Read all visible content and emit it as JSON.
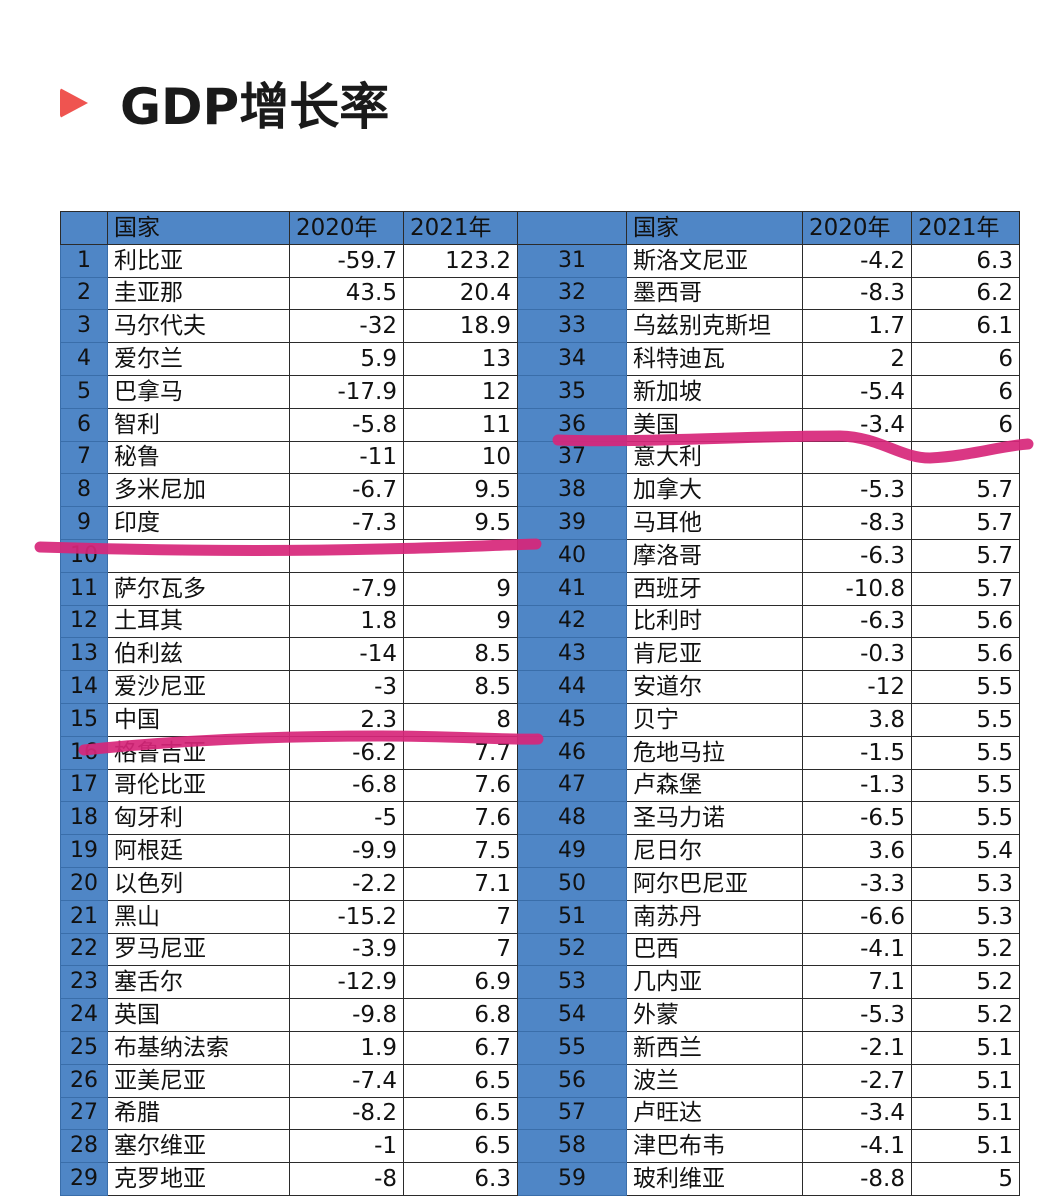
{
  "heading": {
    "title": "GDP增长率",
    "icon": "play-triangle-icon",
    "accent": "#ef5450"
  },
  "table": {
    "header_color": "#4f86c6",
    "headers": [
      "国家",
      "2020年",
      "2021年"
    ],
    "left": [
      [
        "1",
        "利比亚",
        "-59.7",
        "123.2"
      ],
      [
        "2",
        "圭亚那",
        "43.5",
        "20.4"
      ],
      [
        "3",
        "马尔代夫",
        "-32",
        "18.9"
      ],
      [
        "4",
        "爱尔兰",
        "5.9",
        "13"
      ],
      [
        "5",
        "巴拿马",
        "-17.9",
        "12"
      ],
      [
        "6",
        "智利",
        "-5.8",
        "11"
      ],
      [
        "7",
        "秘鲁",
        "-11",
        "10"
      ],
      [
        "8",
        "多米尼加",
        "-6.7",
        "9.5"
      ],
      [
        "9",
        "印度",
        "-7.3",
        "9.5"
      ],
      [
        "10",
        "",
        "",
        ""
      ],
      [
        "11",
        "萨尔瓦多",
        "-7.9",
        "9"
      ],
      [
        "12",
        "土耳其",
        "1.8",
        "9"
      ],
      [
        "13",
        "伯利兹",
        "-14",
        "8.5"
      ],
      [
        "14",
        "爱沙尼亚",
        "-3",
        "8.5"
      ],
      [
        "15",
        "中国",
        "2.3",
        "8"
      ],
      [
        "16",
        "格鲁吉亚",
        "-6.2",
        "7.7"
      ],
      [
        "17",
        "哥伦比亚",
        "-6.8",
        "7.6"
      ],
      [
        "18",
        "匈牙利",
        "-5",
        "7.6"
      ],
      [
        "19",
        "阿根廷",
        "-9.9",
        "7.5"
      ],
      [
        "20",
        "以色列",
        "-2.2",
        "7.1"
      ],
      [
        "21",
        "黑山",
        "-15.2",
        "7"
      ],
      [
        "22",
        "罗马尼亚",
        "-3.9",
        "7"
      ],
      [
        "23",
        "塞舌尔",
        "-12.9",
        "6.9"
      ],
      [
        "24",
        "英国",
        "-9.8",
        "6.8"
      ],
      [
        "25",
        "布基纳法索",
        "1.9",
        "6.7"
      ],
      [
        "26",
        "亚美尼亚",
        "-7.4",
        "6.5"
      ],
      [
        "27",
        "希腊",
        "-8.2",
        "6.5"
      ],
      [
        "28",
        "塞尔维亚",
        "-1",
        "6.5"
      ],
      [
        "29",
        "克罗地亚",
        "-8",
        "6.3"
      ]
    ],
    "right": [
      [
        "31",
        "斯洛文尼亚",
        "-4.2",
        "6.3"
      ],
      [
        "32",
        "墨西哥",
        "-8.3",
        "6.2"
      ],
      [
        "33",
        "乌兹别克斯坦",
        "1.7",
        "6.1"
      ],
      [
        "34",
        "科特迪瓦",
        "2",
        "6"
      ],
      [
        "35",
        "新加坡",
        "-5.4",
        "6"
      ],
      [
        "36",
        "美国",
        "-3.4",
        "6"
      ],
      [
        "37",
        "意大利",
        "",
        ""
      ],
      [
        "38",
        "加拿大",
        "-5.3",
        "5.7"
      ],
      [
        "39",
        "马耳他",
        "-8.3",
        "5.7"
      ],
      [
        "40",
        "摩洛哥",
        "-6.3",
        "5.7"
      ],
      [
        "41",
        "西班牙",
        "-10.8",
        "5.7"
      ],
      [
        "42",
        "比利时",
        "-6.3",
        "5.6"
      ],
      [
        "43",
        "肯尼亚",
        "-0.3",
        "5.6"
      ],
      [
        "44",
        "安道尔",
        "-12",
        "5.5"
      ],
      [
        "45",
        "贝宁",
        "3.8",
        "5.5"
      ],
      [
        "46",
        "危地马拉",
        "-1.5",
        "5.5"
      ],
      [
        "47",
        "卢森堡",
        "-1.3",
        "5.5"
      ],
      [
        "48",
        "圣马力诺",
        "-6.5",
        "5.5"
      ],
      [
        "49",
        "尼日尔",
        "3.6",
        "5.4"
      ],
      [
        "50",
        "阿尔巴尼亚",
        "-3.3",
        "5.3"
      ],
      [
        "51",
        "南苏丹",
        "-6.6",
        "5.3"
      ],
      [
        "52",
        "巴西",
        "-4.1",
        "5.2"
      ],
      [
        "53",
        "几内亚",
        "7.1",
        "5.2"
      ],
      [
        "54",
        "外蒙",
        "-5.3",
        "5.2"
      ],
      [
        "55",
        "新西兰",
        "-2.1",
        "5.1"
      ],
      [
        "56",
        "波兰",
        "-2.7",
        "5.1"
      ],
      [
        "57",
        "卢旺达",
        "-3.4",
        "5.1"
      ],
      [
        "58",
        "津巴布韦",
        "-4.1",
        "5.1"
      ],
      [
        "59",
        "玻利维亚",
        "-8.8",
        "5"
      ]
    ]
  },
  "annotations": {
    "marker_color": "#d7267a"
  }
}
